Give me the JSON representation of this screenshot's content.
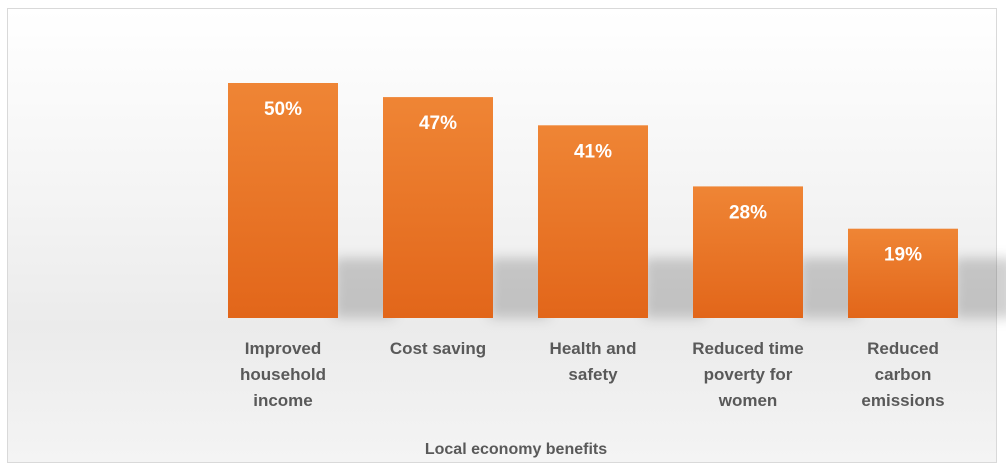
{
  "chart_data": {
    "type": "bar",
    "categories": [
      [
        "Improved",
        "household",
        "income"
      ],
      [
        "Cost saving"
      ],
      [
        "Health and",
        "safety"
      ],
      [
        "Reduced time",
        "poverty for",
        "women"
      ],
      [
        "Reduced",
        "carbon",
        "emissions"
      ]
    ],
    "values": [
      50,
      47,
      41,
      28,
      19
    ],
    "data_labels": [
      "50%",
      "47%",
      "41%",
      "28%",
      "19%"
    ],
    "title": "",
    "xlabel": "Local economy benefits",
    "ylabel": "",
    "ylim": [
      0,
      50
    ],
    "grid": false,
    "legend": "none",
    "colors": {
      "bar_top": "#ef8535",
      "bar_bottom": "#e2661a",
      "label_text": "#595959",
      "frame_border": "#d9d9d9"
    }
  }
}
